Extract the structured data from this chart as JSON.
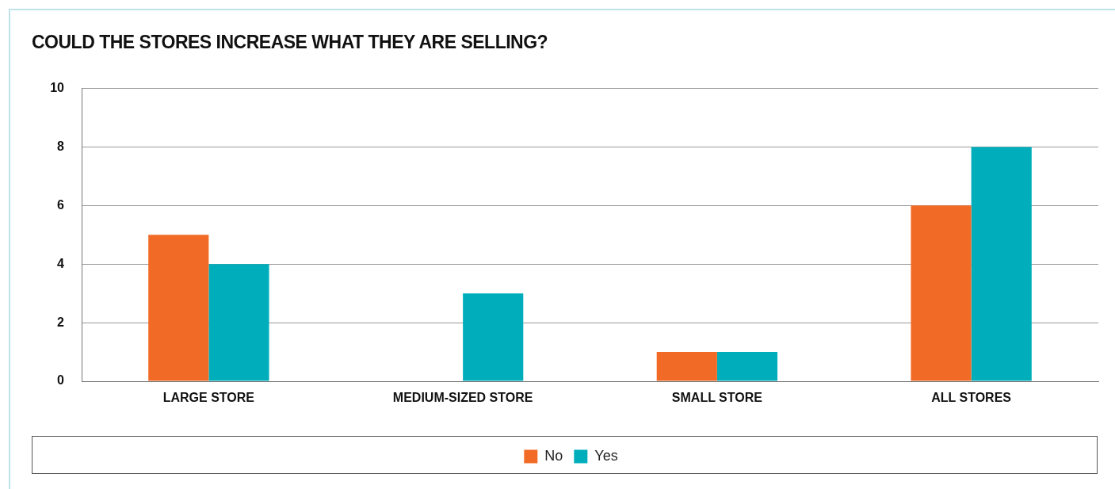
{
  "chart_data": {
    "type": "bar",
    "title": "COULD THE STORES INCREASE WHAT THEY ARE SELLING?",
    "categories": [
      "LARGE STORE",
      "MEDIUM-SIZED STORE",
      "SMALL STORE",
      "ALL STORES"
    ],
    "series": [
      {
        "name": "No",
        "color": "#f26b26",
        "values": [
          5,
          0,
          1,
          6
        ]
      },
      {
        "name": "Yes",
        "color": "#00aebb",
        "values": [
          4,
          3,
          1,
          8
        ]
      }
    ],
    "ylim": [
      0,
      10
    ],
    "yticks": [
      0,
      2,
      4,
      6,
      8,
      10
    ],
    "grid": "y",
    "legend": "bottom"
  }
}
